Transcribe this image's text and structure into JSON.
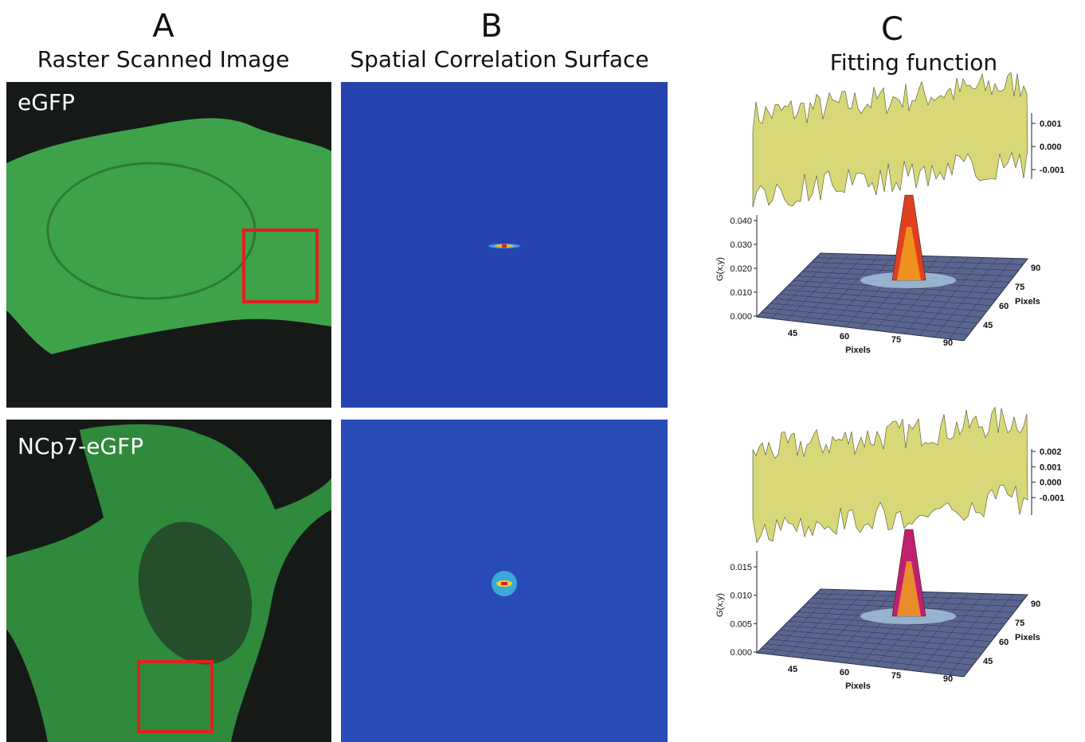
{
  "columns": [
    {
      "letter": "A",
      "title": "Raster Scanned Image"
    },
    {
      "letter": "B",
      "title": "Spatial Correlation Surface"
    },
    {
      "letter": "C",
      "title": "Fitting function"
    }
  ],
  "rows": [
    {
      "label": "eGFP",
      "fit": {
        "residual_ticks": [
          "0.001",
          "0.000",
          "-0.001"
        ],
        "zlabel": "G(x,y)",
        "zticks": [
          "0.040",
          "0.030",
          "0.020",
          "0.010",
          "0.000"
        ],
        "xlabel": "Pixels",
        "xticks": [
          "45",
          "60",
          "75",
          "90"
        ],
        "ylabel": "Pixels",
        "yticks": [
          "45",
          "60",
          "75",
          "90"
        ]
      }
    },
    {
      "label": "NCp7-eGFP",
      "fit": {
        "residual_ticks": [
          "0.002",
          "0.001",
          "0.000",
          "-0.001"
        ],
        "zlabel": "G(x,y)",
        "zticks": [
          "0.015",
          "0.010",
          "0.005",
          "0.000"
        ],
        "xlabel": "Pixels",
        "xticks": [
          "45",
          "60",
          "75",
          "90"
        ],
        "ylabel": "Pixels",
        "yticks": [
          "45",
          "60",
          "75",
          "90"
        ]
      }
    }
  ]
}
